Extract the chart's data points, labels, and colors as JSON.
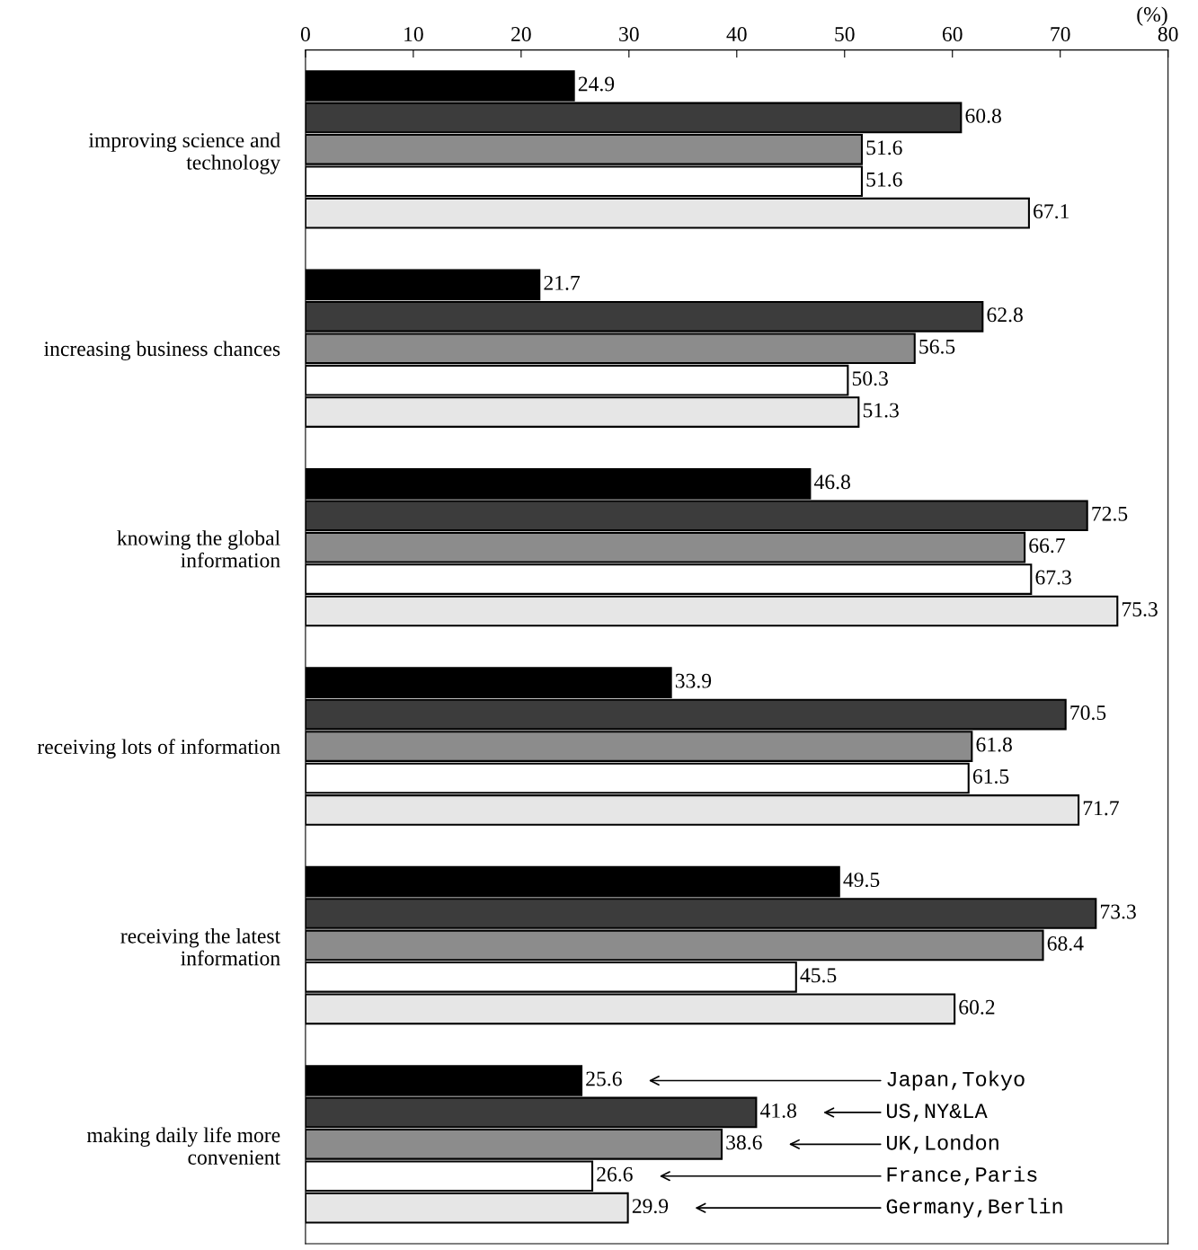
{
  "chart_data": {
    "type": "bar",
    "orientation": "horizontal",
    "xlabel": "(%)",
    "categories": [
      "improving science and\ntechnology",
      "increasing business chances",
      "knowing the global\ninformation",
      "receiving lots of information",
      "receiving the latest\ninformation",
      "making daily life more\nconvenient"
    ],
    "series": [
      {
        "name": "Japan,Tokyo",
        "color": "#000000",
        "values": [
          24.9,
          21.7,
          46.8,
          33.9,
          49.5,
          25.6
        ]
      },
      {
        "name": "US,NY&LA",
        "color": "#3c3c3c",
        "values": [
          60.8,
          62.8,
          72.5,
          70.5,
          73.3,
          41.8
        ]
      },
      {
        "name": "UK,London",
        "color": "#8c8c8c",
        "values": [
          51.6,
          56.5,
          66.7,
          61.8,
          68.4,
          38.6
        ]
      },
      {
        "name": "France,Paris",
        "color": "#ffffff",
        "values": [
          51.6,
          50.3,
          67.3,
          61.5,
          45.5,
          26.6
        ]
      },
      {
        "name": "Germany,Berlin",
        "color": "#e6e6e6",
        "values": [
          67.1,
          51.3,
          75.3,
          71.7,
          60.2,
          29.9
        ]
      }
    ],
    "xlim": [
      0,
      80
    ],
    "xticks": [
      0,
      10,
      20,
      30,
      40,
      50,
      60,
      70,
      80
    ],
    "data_labels": true,
    "legend": "bottom right",
    "grid": false
  }
}
